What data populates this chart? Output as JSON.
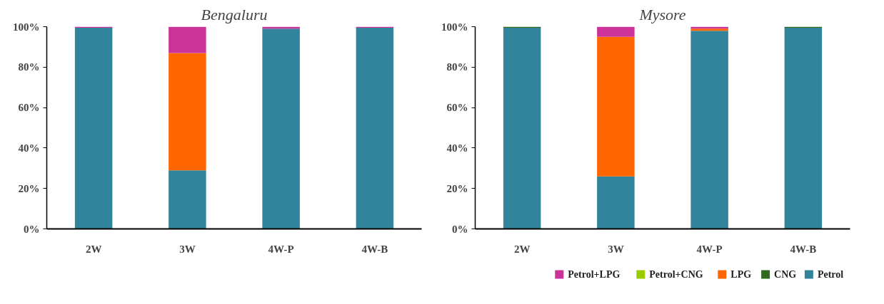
{
  "chart_data": [
    {
      "type": "bar",
      "stacked": true,
      "title": "Bengaluru",
      "categories": [
        "2W",
        "3W",
        "4W-P",
        "4W-B"
      ],
      "ylim": [
        0,
        100
      ],
      "yticks": [
        {
          "value": 0,
          "label": "0%"
        },
        {
          "value": 20,
          "label": "20%"
        },
        {
          "value": 40,
          "label": "40%"
        },
        {
          "value": 60,
          "label": "60%"
        },
        {
          "value": 80,
          "label": "80%"
        },
        {
          "value": 100,
          "label": "100%"
        }
      ],
      "grid": false,
      "series": [
        {
          "color": "#31849b",
          "values": [
            99.5,
            29,
            99,
            99.5
          ]
        },
        {
          "color": "#31691e",
          "values": [
            0,
            0,
            0,
            0
          ]
        },
        {
          "color": "#ff6600",
          "values": [
            0,
            58,
            0,
            0
          ]
        },
        {
          "color": "#99cc00",
          "values": [
            0,
            0,
            0,
            0
          ]
        },
        {
          "color": "#cc3399",
          "values": [
            0.5,
            13,
            1,
            0.5
          ]
        }
      ]
    },
    {
      "type": "bar",
      "stacked": true,
      "title": "Mysore",
      "categories": [
        "2W",
        "3W",
        "4W-P",
        "4W-B"
      ],
      "ylim": [
        0,
        100
      ],
      "yticks": [
        {
          "value": 0,
          "label": "0%"
        },
        {
          "value": 20,
          "label": "20%"
        },
        {
          "value": 40,
          "label": "40%"
        },
        {
          "value": 60,
          "label": "60%"
        },
        {
          "value": 80,
          "label": "80%"
        },
        {
          "value": 100,
          "label": "100%"
        }
      ],
      "grid": false,
      "legend": "bottom right",
      "series": [
        {
          "name": "Petrol",
          "color": "#31849b",
          "values": [
            99.5,
            26,
            98,
            99.5
          ]
        },
        {
          "name": "CNG",
          "color": "#31691e",
          "values": [
            0.5,
            0,
            0,
            0.5
          ]
        },
        {
          "name": "LPG",
          "color": "#ff6600",
          "values": [
            0,
            69,
            1,
            0
          ]
        },
        {
          "name": "Petrol+CNG",
          "color": "#99cc00",
          "values": [
            0,
            0,
            0,
            0
          ]
        },
        {
          "name": "Petrol+LPG",
          "color": "#cc3399",
          "values": [
            0,
            5,
            1,
            0
          ]
        }
      ]
    }
  ]
}
